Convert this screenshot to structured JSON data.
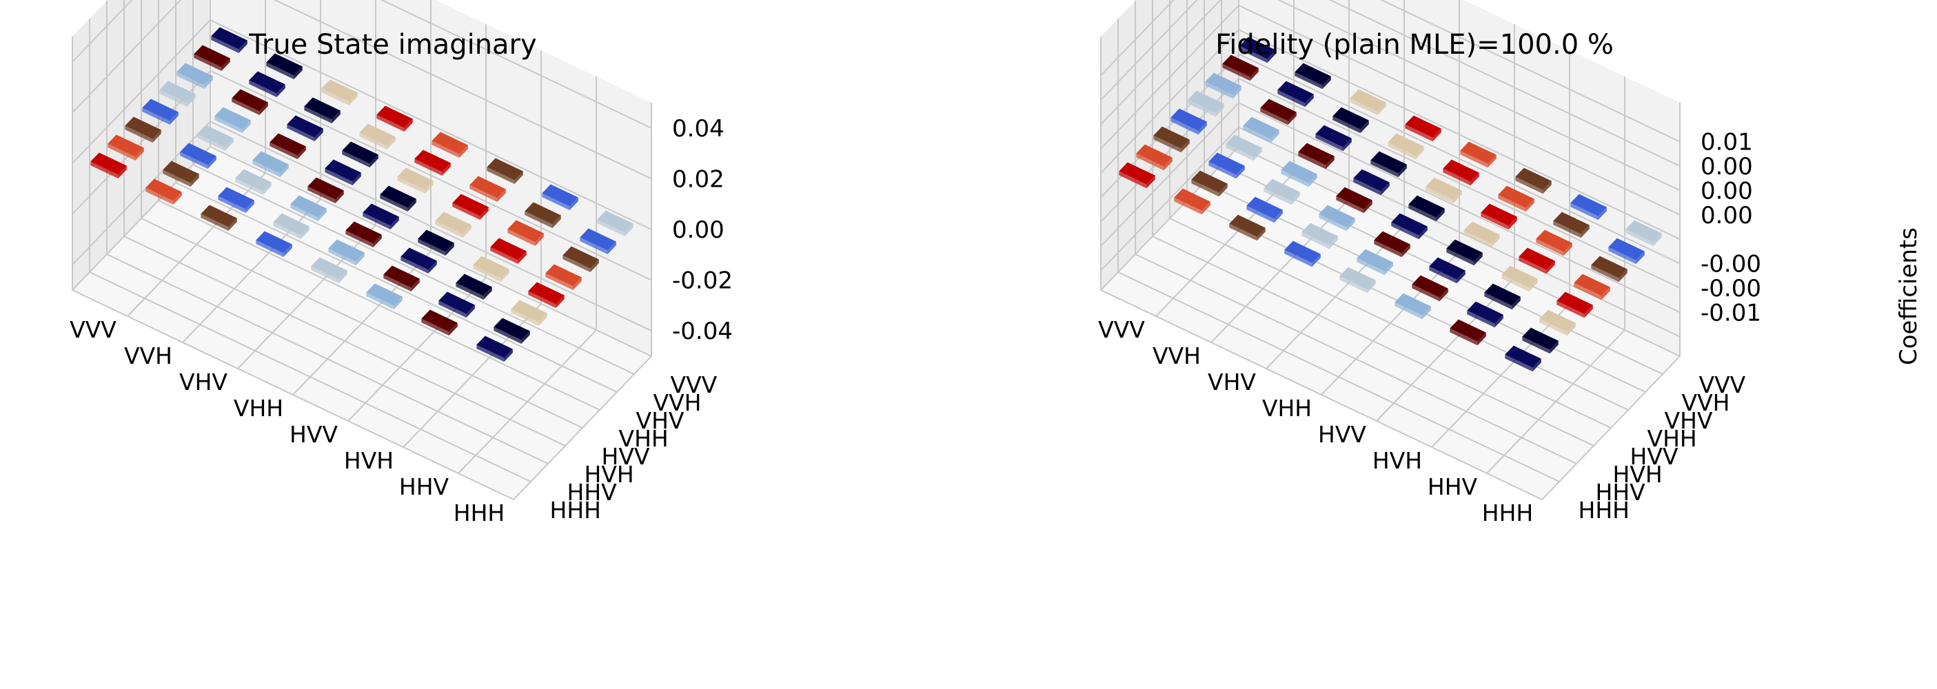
{
  "figure": {
    "panels": [
      {
        "title": "True State imaginary"
      },
      {
        "title": "Fidelity (plain MLE)=100.0 %",
        "zlabel": "Coefficients"
      }
    ]
  },
  "chart_data": [
    {
      "type": "bar3d",
      "title": "True State imaginary",
      "x_categories": [
        "HHH",
        "HHV",
        "HVH",
        "HVV",
        "VHH",
        "VHV",
        "VVH",
        "VVV"
      ],
      "y_categories": [
        "HHH",
        "HHV",
        "HVH",
        "HVV",
        "VHH",
        "VHV",
        "VVH",
        "VVV"
      ],
      "zlim": [
        -0.05,
        0.05
      ],
      "z_ticks": [
        0.04,
        0.02,
        0.0,
        -0.02,
        -0.04
      ],
      "z_tick_labels": [
        "0.04",
        "0.02",
        "0.00",
        "-0.02",
        "-0.04"
      ],
      "values": [
        [
          0,
          0,
          0,
          0,
          0,
          0,
          0,
          0
        ],
        [
          0,
          0,
          0,
          0,
          0,
          0,
          0,
          0
        ],
        [
          0,
          0,
          0,
          0,
          0,
          0,
          0,
          0
        ],
        [
          0,
          0,
          0,
          0,
          0,
          0,
          0,
          0
        ],
        [
          0,
          0,
          0,
          0,
          0,
          0,
          0,
          0
        ],
        [
          0,
          0,
          0,
          0,
          0,
          0,
          0,
          0
        ],
        [
          0,
          0,
          0,
          0,
          0,
          0,
          0,
          0
        ],
        [
          0,
          0,
          0,
          0,
          0,
          0,
          0,
          0
        ]
      ]
    },
    {
      "type": "bar3d",
      "title": "Fidelity (plain MLE)=100.0 %",
      "zlabel": "Coefficients",
      "x_categories": [
        "HHH",
        "HHV",
        "HVH",
        "HVV",
        "VHH",
        "VHV",
        "VVH",
        "VVV"
      ],
      "y_categories": [
        "HHH",
        "HHV",
        "HVH",
        "HVV",
        "VHH",
        "VHV",
        "VVH",
        "VVV"
      ],
      "zlim": [
        -0.012,
        0.014
      ],
      "z_ticks": [
        0.01,
        0.0075,
        0.005,
        0.0025,
        0.0,
        -0.0025,
        -0.005,
        -0.0075,
        -0.01
      ],
      "z_tick_labels": [
        "0.01",
        "0.00",
        "0.00",
        "0.00",
        "-0.00",
        "-0.00",
        "-0.01"
      ],
      "z_tick_values": [
        0.01,
        0.0075,
        0.005,
        0.0025,
        -0.0025,
        -0.005,
        -0.0075
      ],
      "values": [
        [
          0,
          0,
          0,
          0,
          0,
          0,
          0,
          0
        ],
        [
          0,
          0,
          0,
          0,
          0,
          0,
          0,
          0
        ],
        [
          0,
          0,
          0,
          0,
          0,
          0,
          0,
          0
        ],
        [
          0,
          0,
          0,
          0,
          0,
          0,
          0,
          0
        ],
        [
          0,
          0,
          0,
          0,
          0,
          0,
          0,
          0
        ],
        [
          0,
          0,
          0,
          0,
          0,
          0,
          0,
          0
        ],
        [
          0,
          0,
          0,
          0,
          0,
          0,
          0,
          0
        ],
        [
          0,
          0,
          0,
          0,
          0,
          0,
          0,
          0
        ]
      ]
    }
  ]
}
